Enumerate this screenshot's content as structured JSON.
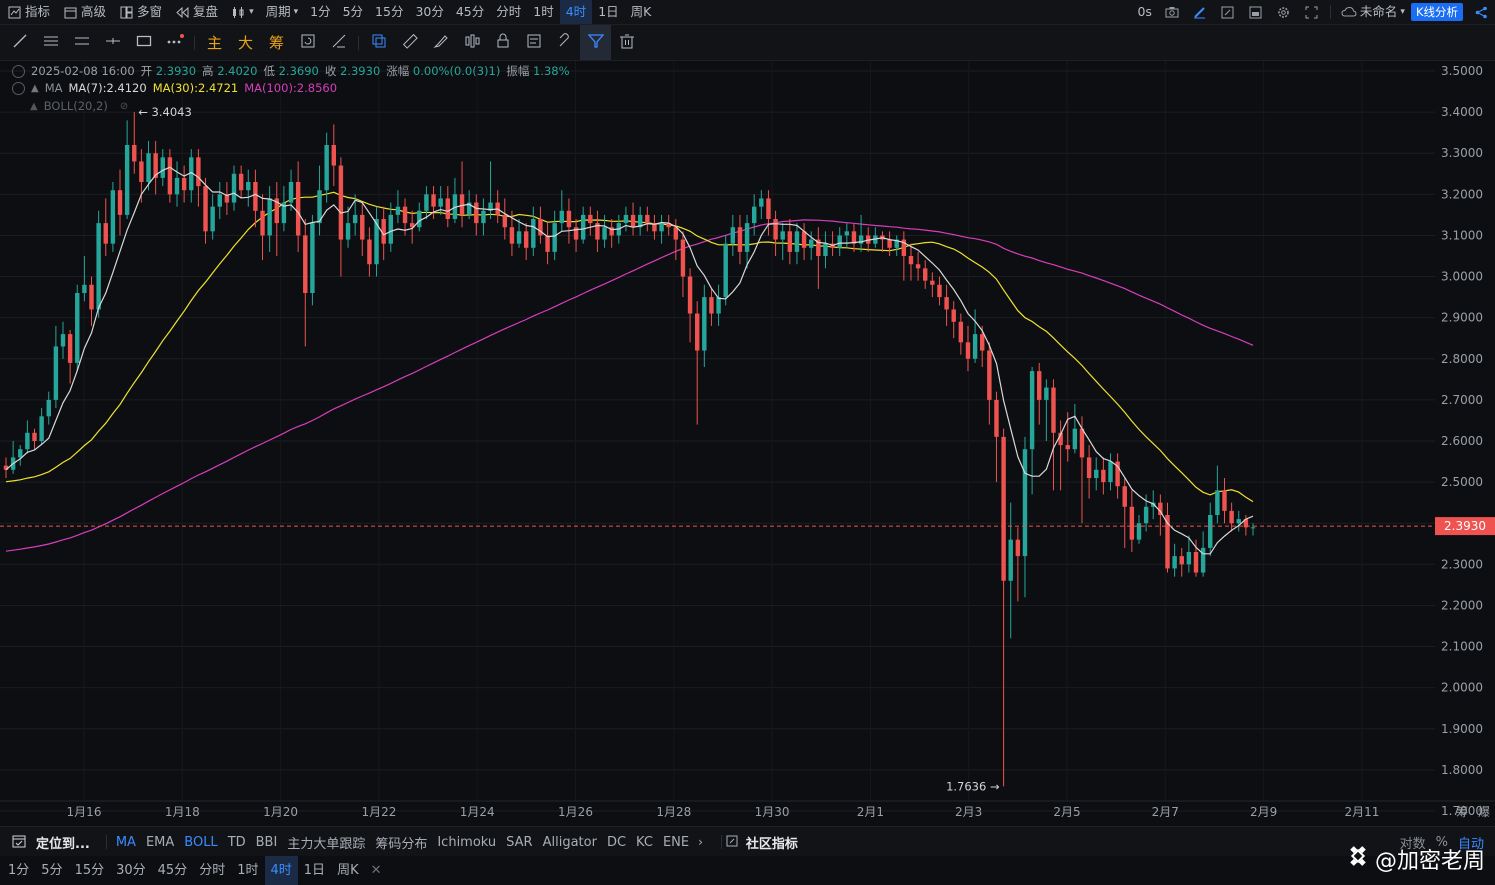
{
  "toolbar": {
    "indicators_label": "指标",
    "advanced_label": "高级",
    "multiwindow_label": "多窗",
    "replay_label": "复盘",
    "period_label": "周期",
    "periods": [
      "1分",
      "5分",
      "15分",
      "30分",
      "45分",
      "分时",
      "1时",
      "4时",
      "1日",
      "周K"
    ],
    "active_period": "4时",
    "latency": "0s",
    "unnamed_label": "未命名",
    "kline_analysis": "K线分析"
  },
  "drawbar": {
    "main_label": "主",
    "big_label": "大",
    "chip_label": "筹"
  },
  "chart_info": {
    "date": "2025-02-08 16:00",
    "open_label": "开",
    "open": "2.3930",
    "high_label": "高",
    "high": "2.4020",
    "low_label": "低",
    "low": "2.3690",
    "close_label": "收",
    "close": "2.3930",
    "change_label": "涨幅",
    "change": "0.00%(0.0(3)1)",
    "amp_label": "振幅",
    "amp": "1.38%",
    "ma_label": "MA",
    "ma7": "MA(7):2.4120",
    "ma30": "MA(30):2.4721",
    "ma100": "MA(100):2.8560",
    "boll": "BOLL(20,2)"
  },
  "colors": {
    "up": "#26a69a",
    "down": "#ef5350",
    "ma7": "#d9d9d9",
    "ma30": "#f0e130",
    "ma100": "#d63ebd",
    "price_line": "#ef5350",
    "accent": "#1b6ef3"
  },
  "chart_data": {
    "type": "candlestick",
    "interval": "4h",
    "y_axis": {
      "min": 1.7,
      "max": 3.5,
      "ticks": [
        "3.5000",
        "3.4000",
        "3.3000",
        "3.2000",
        "3.1000",
        "3.0000",
        "2.9000",
        "2.8000",
        "2.7000",
        "2.6000",
        "2.5000",
        "2.4000",
        "2.3000",
        "2.2000",
        "2.1000",
        "2.0000",
        "1.9000",
        "1.8000",
        "1.7000"
      ]
    },
    "x_labels": [
      "1月16",
      "1月18",
      "1月20",
      "1月22",
      "1月24",
      "1月26",
      "1月28",
      "1月30",
      "2月1",
      "2月3",
      "2月5",
      "2月7",
      "2月9",
      "2月11"
    ],
    "last_price": "2.3930",
    "annotations": {
      "high": "3.4043",
      "low": "1.7636"
    },
    "candles": [
      [
        2.54,
        2.53,
        2.56,
        2.51
      ],
      [
        2.53,
        2.56,
        2.6,
        2.52
      ],
      [
        2.56,
        2.58,
        2.59,
        2.54
      ],
      [
        2.58,
        2.62,
        2.65,
        2.57
      ],
      [
        2.62,
        2.6,
        2.63,
        2.58
      ],
      [
        2.6,
        2.66,
        2.68,
        2.59
      ],
      [
        2.66,
        2.7,
        2.72,
        2.64
      ],
      [
        2.7,
        2.83,
        2.88,
        2.68
      ],
      [
        2.83,
        2.86,
        2.89,
        2.8
      ],
      [
        2.86,
        2.79,
        2.87,
        2.74
      ],
      [
        2.79,
        2.96,
        2.98,
        2.77
      ],
      [
        2.96,
        2.98,
        3.05,
        2.94
      ],
      [
        2.98,
        2.92,
        3.0,
        2.88
      ],
      [
        2.92,
        3.13,
        3.16,
        2.9
      ],
      [
        3.13,
        3.08,
        3.19,
        3.05
      ],
      [
        3.08,
        3.21,
        3.23,
        3.06
      ],
      [
        3.21,
        3.15,
        3.26,
        3.1
      ],
      [
        3.15,
        3.32,
        3.38,
        3.14
      ],
      [
        3.32,
        3.28,
        3.4,
        3.25
      ],
      [
        3.28,
        3.23,
        3.31,
        3.18
      ],
      [
        3.23,
        3.3,
        3.33,
        3.21
      ],
      [
        3.3,
        3.24,
        3.33,
        3.2
      ],
      [
        3.24,
        3.29,
        3.31,
        3.22
      ],
      [
        3.29,
        3.2,
        3.31,
        3.18
      ],
      [
        3.2,
        3.24,
        3.28,
        3.17
      ],
      [
        3.24,
        3.21,
        3.27,
        3.18
      ],
      [
        3.21,
        3.29,
        3.31,
        3.18
      ],
      [
        3.29,
        3.22,
        3.31,
        3.17
      ],
      [
        3.22,
        3.11,
        3.24,
        3.08
      ],
      [
        3.11,
        3.17,
        3.2,
        3.09
      ],
      [
        3.17,
        3.2,
        3.23,
        3.14
      ],
      [
        3.2,
        3.18,
        3.23,
        3.15
      ],
      [
        3.18,
        3.25,
        3.27,
        3.16
      ],
      [
        3.25,
        3.21,
        3.27,
        3.19
      ],
      [
        3.21,
        3.23,
        3.26,
        3.17
      ],
      [
        3.23,
        3.16,
        3.26,
        3.12
      ],
      [
        3.16,
        3.1,
        3.2,
        3.04
      ],
      [
        3.1,
        3.19,
        3.22,
        3.06
      ],
      [
        3.19,
        3.13,
        3.23,
        3.05
      ],
      [
        3.13,
        3.18,
        3.22,
        3.11
      ],
      [
        3.18,
        3.23,
        3.26,
        3.16
      ],
      [
        3.23,
        3.1,
        3.28,
        3.06
      ],
      [
        3.1,
        2.96,
        3.14,
        2.83
      ],
      [
        2.96,
        3.13,
        3.15,
        2.93
      ],
      [
        3.13,
        3.21,
        3.27,
        3.1
      ],
      [
        3.21,
        3.32,
        3.35,
        3.18
      ],
      [
        3.32,
        3.27,
        3.37,
        3.22
      ],
      [
        3.27,
        3.09,
        3.29,
        3.0
      ],
      [
        3.09,
        3.13,
        3.17,
        3.07
      ],
      [
        3.13,
        3.15,
        3.2,
        3.1
      ],
      [
        3.15,
        3.09,
        3.18,
        3.05
      ],
      [
        3.09,
        3.03,
        3.12,
        3.0
      ],
      [
        3.03,
        3.14,
        3.17,
        3.0
      ],
      [
        3.14,
        3.08,
        3.17,
        3.04
      ],
      [
        3.08,
        3.15,
        3.18,
        3.06
      ],
      [
        3.15,
        3.17,
        3.21,
        3.13
      ],
      [
        3.17,
        3.13,
        3.19,
        3.1
      ],
      [
        3.13,
        3.12,
        3.16,
        3.08
      ],
      [
        3.12,
        3.16,
        3.18,
        3.11
      ],
      [
        3.16,
        3.2,
        3.22,
        3.14
      ],
      [
        3.2,
        3.17,
        3.22,
        3.14
      ],
      [
        3.17,
        3.19,
        3.22,
        3.15
      ],
      [
        3.19,
        3.14,
        3.22,
        3.12
      ],
      [
        3.14,
        3.2,
        3.24,
        3.13
      ],
      [
        3.2,
        3.15,
        3.28,
        3.12
      ],
      [
        3.15,
        3.18,
        3.21,
        3.14
      ],
      [
        3.18,
        3.13,
        3.2,
        3.1
      ],
      [
        3.13,
        3.16,
        3.19,
        3.1
      ],
      [
        3.16,
        3.18,
        3.28,
        3.14
      ],
      [
        3.18,
        3.15,
        3.21,
        3.13
      ],
      [
        3.15,
        3.12,
        3.19,
        3.09
      ],
      [
        3.12,
        3.08,
        3.16,
        3.05
      ],
      [
        3.08,
        3.11,
        3.14,
        3.07
      ],
      [
        3.11,
        3.07,
        3.13,
        3.04
      ],
      [
        3.07,
        3.14,
        3.17,
        3.05
      ],
      [
        3.14,
        3.1,
        3.17,
        3.08
      ],
      [
        3.1,
        3.06,
        3.13,
        3.03
      ],
      [
        3.06,
        3.13,
        3.16,
        3.04
      ],
      [
        3.13,
        3.16,
        3.21,
        3.11
      ],
      [
        3.16,
        3.12,
        3.19,
        3.08
      ],
      [
        3.12,
        3.09,
        3.14,
        3.06
      ],
      [
        3.09,
        3.15,
        3.17,
        3.08
      ],
      [
        3.15,
        3.13,
        3.17,
        3.1
      ],
      [
        3.13,
        3.09,
        3.16,
        3.06
      ],
      [
        3.09,
        3.12,
        3.15,
        3.07
      ],
      [
        3.12,
        3.1,
        3.14,
        3.07
      ],
      [
        3.1,
        3.13,
        3.15,
        3.08
      ],
      [
        3.13,
        3.15,
        3.17,
        3.11
      ],
      [
        3.15,
        3.12,
        3.18,
        3.1
      ],
      [
        3.12,
        3.15,
        3.17,
        3.1
      ],
      [
        3.15,
        3.13,
        3.17,
        3.11
      ],
      [
        3.13,
        3.11,
        3.15,
        3.09
      ],
      [
        3.11,
        3.13,
        3.15,
        3.08
      ],
      [
        3.13,
        3.12,
        3.15,
        3.1
      ],
      [
        3.12,
        3.09,
        3.14,
        3.04
      ],
      [
        3.09,
        3.0,
        3.11,
        2.95
      ],
      [
        3.0,
        2.91,
        3.02,
        2.84
      ],
      [
        2.91,
        2.82,
        2.94,
        2.64
      ],
      [
        2.82,
        2.95,
        2.98,
        2.78
      ],
      [
        2.95,
        2.91,
        2.97,
        2.88
      ],
      [
        2.91,
        2.95,
        2.98,
        2.88
      ],
      [
        2.95,
        3.08,
        3.1,
        2.93
      ],
      [
        3.08,
        3.12,
        3.15,
        3.05
      ],
      [
        3.12,
        3.06,
        3.15,
        3.03
      ],
      [
        3.06,
        3.13,
        3.15,
        3.02
      ],
      [
        3.13,
        3.17,
        3.2,
        3.1
      ],
      [
        3.17,
        3.19,
        3.21,
        3.14
      ],
      [
        3.19,
        3.14,
        3.21,
        3.1
      ],
      [
        3.14,
        3.09,
        3.16,
        3.05
      ],
      [
        3.09,
        3.11,
        3.13,
        3.04
      ],
      [
        3.11,
        3.06,
        3.14,
        3.03
      ],
      [
        3.06,
        3.11,
        3.13,
        3.03
      ],
      [
        3.11,
        3.07,
        3.13,
        3.04
      ],
      [
        3.07,
        3.09,
        3.11,
        3.04
      ],
      [
        3.09,
        3.05,
        3.12,
        2.97
      ],
      [
        3.05,
        3.08,
        3.11,
        3.02
      ],
      [
        3.08,
        3.07,
        3.11,
        3.05
      ],
      [
        3.07,
        3.1,
        3.12,
        3.05
      ],
      [
        3.1,
        3.11,
        3.13,
        3.07
      ],
      [
        3.11,
        3.08,
        3.13,
        3.06
      ],
      [
        3.08,
        3.1,
        3.15,
        3.06
      ],
      [
        3.1,
        3.08,
        3.12,
        3.06
      ],
      [
        3.08,
        3.1,
        3.12,
        3.07
      ],
      [
        3.1,
        3.09,
        3.11,
        3.06
      ],
      [
        3.09,
        3.07,
        3.11,
        3.05
      ],
      [
        3.07,
        3.09,
        3.1,
        3.05
      ],
      [
        3.09,
        3.05,
        3.11,
        2.99
      ],
      [
        3.05,
        3.03,
        3.08,
        2.99
      ],
      [
        3.03,
        3.02,
        3.06,
        2.99
      ],
      [
        3.02,
        2.99,
        3.04,
        2.97
      ],
      [
        2.99,
        2.98,
        3.01,
        2.95
      ],
      [
        2.98,
        2.95,
        3.0,
        2.93
      ],
      [
        2.95,
        2.92,
        2.98,
        2.88
      ],
      [
        2.92,
        2.89,
        2.94,
        2.85
      ],
      [
        2.89,
        2.84,
        2.91,
        2.81
      ],
      [
        2.84,
        2.8,
        2.88,
        2.77
      ],
      [
        2.8,
        2.86,
        2.92,
        2.79
      ],
      [
        2.86,
        2.82,
        2.88,
        2.78
      ],
      [
        2.82,
        2.7,
        2.84,
        2.64
      ],
      [
        2.7,
        2.61,
        2.72,
        2.5
      ],
      [
        2.61,
        2.26,
        2.63,
        1.76
      ],
      [
        2.26,
        2.36,
        2.45,
        2.12
      ],
      [
        2.36,
        2.32,
        2.39,
        2.21
      ],
      [
        2.32,
        2.58,
        2.61,
        2.22
      ],
      [
        2.58,
        2.77,
        2.78,
        2.47
      ],
      [
        2.77,
        2.7,
        2.79,
        2.64
      ],
      [
        2.7,
        2.73,
        2.75,
        2.6
      ],
      [
        2.73,
        2.62,
        2.75,
        2.48
      ],
      [
        2.62,
        2.59,
        2.65,
        2.48
      ],
      [
        2.59,
        2.58,
        2.67,
        2.55
      ],
      [
        2.58,
        2.63,
        2.69,
        2.57
      ],
      [
        2.63,
        2.56,
        2.66,
        2.4
      ],
      [
        2.56,
        2.51,
        2.59,
        2.46
      ],
      [
        2.51,
        2.53,
        2.56,
        2.48
      ],
      [
        2.53,
        2.5,
        2.56,
        2.47
      ],
      [
        2.5,
        2.55,
        2.57,
        2.48
      ],
      [
        2.55,
        2.49,
        2.57,
        2.46
      ],
      [
        2.49,
        2.44,
        2.51,
        2.34
      ],
      [
        2.44,
        2.36,
        2.48,
        2.33
      ],
      [
        2.36,
        2.4,
        2.42,
        2.35
      ],
      [
        2.4,
        2.44,
        2.47,
        2.38
      ],
      [
        2.44,
        2.45,
        2.48,
        2.41
      ],
      [
        2.45,
        2.42,
        2.47,
        2.37
      ],
      [
        2.42,
        2.29,
        2.45,
        2.28
      ],
      [
        2.29,
        2.32,
        2.35,
        2.27
      ],
      [
        2.32,
        2.3,
        2.34,
        2.27
      ],
      [
        2.3,
        2.33,
        2.37,
        2.28
      ],
      [
        2.33,
        2.28,
        2.36,
        2.27
      ],
      [
        2.28,
        2.34,
        2.38,
        2.27
      ],
      [
        2.34,
        2.42,
        2.45,
        2.32
      ],
      [
        2.42,
        2.48,
        2.54,
        2.4
      ],
      [
        2.48,
        2.43,
        2.51,
        2.4
      ],
      [
        2.43,
        2.4,
        2.45,
        2.38
      ],
      [
        2.4,
        2.41,
        2.43,
        2.38
      ],
      [
        2.41,
        2.39,
        2.42,
        2.37
      ],
      [
        2.39,
        2.39,
        2.4,
        2.37
      ]
    ],
    "series": [
      {
        "name": "MA(7)",
        "values": "computed"
      },
      {
        "name": "MA(30)",
        "values": "computed"
      },
      {
        "name": "MA(100)",
        "values": "computed"
      }
    ]
  },
  "bottom": {
    "locate_label": "定位到...",
    "indicators": [
      "MA",
      "EMA",
      "BOLL",
      "TD",
      "BBI",
      "主力大单跟踪",
      "筹码分布",
      "Ichimoku",
      "SAR",
      "Alligator",
      "DC",
      "KC",
      "ENE"
    ],
    "active_indicators": [
      "MA",
      "BOLL"
    ],
    "community_label": "社区指标",
    "log_label": "对数",
    "percent_label": "%",
    "auto_label": "自动",
    "corner_label_1": "筹",
    "corner_label_2": "爆"
  },
  "period_bar": {
    "periods": [
      "1分",
      "5分",
      "15分",
      "30分",
      "45分",
      "分时",
      "1时",
      "4时",
      "1日",
      "周K"
    ],
    "active": "4时"
  },
  "watermark": "@加密老周"
}
